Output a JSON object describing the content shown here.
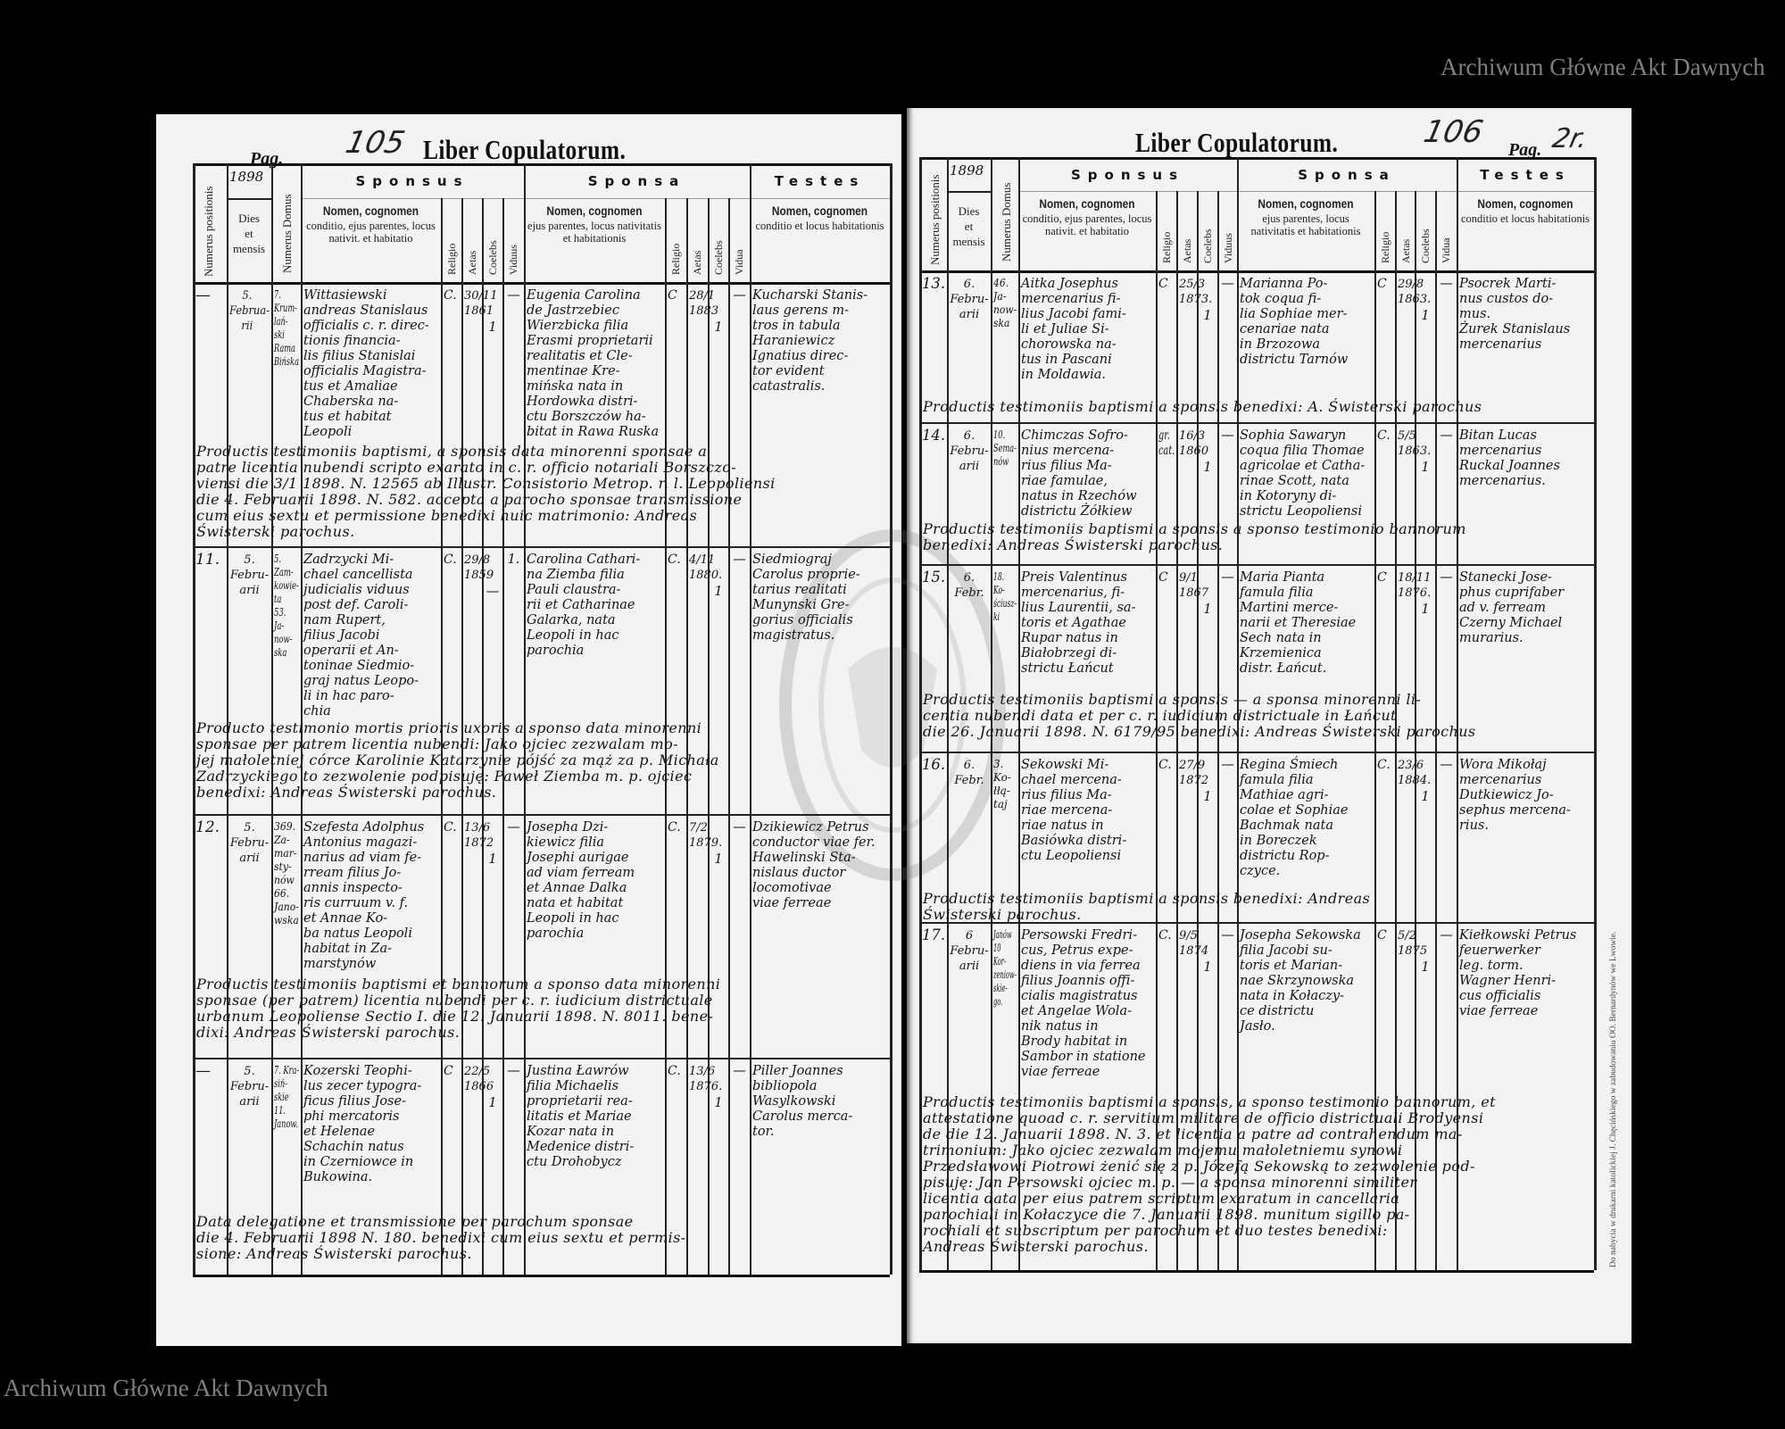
{
  "header": {
    "title": "Liber Copulatorum.",
    "pag_label": "Pag.",
    "year": "1898",
    "col_numerus_positionis": "Numerus positionis",
    "col_dies": "Dies\net\nmensis",
    "col_numerus_domus": "Numerus Domus",
    "sponsus_group": "Sponsus",
    "sponsa_group": "Sponsa",
    "testes_group": "Testes",
    "nomen": "Nomen, cognomen",
    "sponsus_desc": "conditio, ejus parentes, locus nativit. et habitatio",
    "sponsa_desc": "ejus parentes, locus nativitatis et habitationis",
    "testes_desc": "conditio et locus habitationis",
    "religio": "Religio",
    "aetas": "Aetas",
    "coelebs": "Coelebs",
    "viduus": "Viduus",
    "vidua": "Vidua"
  },
  "watermark": "Archiwum Główne Akt Dawnych",
  "imprint": "Do nabycia w drukarni katolickiej J. Chęcińskiego w zabudowaniu OO. Bernardynów we Lwowie.",
  "pages": [
    {
      "folio": "105",
      "pag": "",
      "entries": [
        {
          "num": "—",
          "date": "5.\nFebrua-\nrii",
          "domus": "7.\nKrum-\nlań-\nski\nRama\nBińska",
          "sponsus": "Wittasiewski\nandreas Stanislaus\nofficialis c. r. direc-\ntionis financia-\nlis filius Stanislai\nofficialis Magistra-\ntus et Amaliae\nChaberska na-\ntus et habitat\nLeopoli",
          "sponsus_religio": "C.",
          "sponsus_aetas": "30/11\n1861",
          "sponsus_coelebs": "1",
          "sponsus_viduus": "—",
          "sponsa": "Eugenia Carolina\nde Jastrzebiec\nWierzbicka filia\nErasmi proprietarii\nrealitatis et Cle-\nmentinae Kre-\nmińska nata in\nHordowka distri-\nctu Borszczów ha-\nbitat in Rawa Ruska",
          "sponsa_religio": "C",
          "sponsa_aetas": "28/1\n1883",
          "sponsa_coelebs": "1",
          "sponsa_vidua": "—",
          "testes": "Kucharski Stanis-\nlaus gerens m-\ntros in tabula\nHaraniewicz\nIgnatius direc-\ntor evident\ncatastralis.",
          "note": "Productis testimoniis baptismi, a sponsis data minorenni sponsae a\npatre licentia nubendi scripto exarato in c. r. officio notariali Borszczo-\nviensi die 3/1 1898. N. 12565 ab Illustr. Consistorio Metrop. r. l. Leopoliensi\ndie 4. Februarii 1898. N. 582. accepta a parocho sponsae transmissione\ncum eius sextu et permissione benedixi huic matrimonio: Andreas\nŚwisterski parochus."
        },
        {
          "num": "11.",
          "date": "5.\nFebru-\narii",
          "domus": "5.\nZam-\nkowie-\nta\n53.\nJa-\nnow-\nska",
          "sponsus": "Zadrzycki Mi-\nchael cancellista\njudicialis viduus\npost def. Caroli-\nnam Rupert,\nfilius Jacobi\noperarii et An-\ntoninae Siedmio-\ngraj natus Leopo-\nli in hac paro-\nchia",
          "sponsus_religio": "C.",
          "sponsus_aetas": "29/8\n1859",
          "sponsus_coelebs": "—",
          "sponsus_viduus": "1.",
          "sponsa": "Carolina Cathari-\nna Ziemba filia\nPauli claustra-\nrii et Catharinae\nGalarka, nata\nLeopoli in hac\nparochia",
          "sponsa_religio": "C.",
          "sponsa_aetas": "4/11\n1880.",
          "sponsa_coelebs": "1",
          "sponsa_vidua": "—",
          "testes": "Siedmiograj\nCarolus proprie-\ntarius realitati\nMunynski Gre-\ngorius officialis\nmagistratus.",
          "note": "Producto testimonio mortis prioris uxoris a sponso data minorenni\nsponsae per patrem licentia nubendi: Jako ojciec zezwalam mo-\njej małoletniej córce Karolinie Katarzynie pójść za mąż za p. Michała\nZadrzyckiego to zezwolenie podpisuję: Paweł Ziemba m. p. ojciec\nbenedixi: Andreas Świsterski parochus."
        },
        {
          "num": "12.",
          "date": "5.\nFebru-\narii",
          "domus": "369.\nZa-\nmar-\nsty-\nnów\n66.\nJano-\nwska",
          "sponsus": "Szefesta Adolphus\nAntonius magazi-\nnarius ad viam fe-\nrream filius Jo-\nannis inspecto-\nris curruum v. f.\net Annae Ko-\nba natus Leopoli\nhabitat in Za-\nmarstynów",
          "sponsus_religio": "C.",
          "sponsus_aetas": "13/6\n1872",
          "sponsus_coelebs": "1",
          "sponsus_viduus": "—",
          "sponsa": "Josepha Dzi-\nkiewicz filia\nJosephi aurigae\nad viam ferream\net Annae Dalka\nnata et habitat\nLeopoli in hac\nparochia",
          "sponsa_religio": "C.",
          "sponsa_aetas": "7/2\n1879.",
          "sponsa_coelebs": "1",
          "sponsa_vidua": "—",
          "testes": "Dzikiewicz Petrus\nconductor viae fer.\nHawelinski Sta-\nnislaus ductor\nlocomotivae\nviae ferreae",
          "note": "Productis testimoniis baptismi et bannorum a sponso data minorenni\nsponsae (per patrem) licentia nubendi per c. r. iudicium districtuale\nurbanum Leopoliense Sectio I. die 12. Januarii 1898. N. 8011. bene-\ndixi: Andreas Świsterski parochus."
        },
        {
          "num": "—",
          "date": "5.\nFebru-\narii",
          "domus": "7. Kra-\nsiń-\nskie\n11.\nJanow.",
          "sponsus": "Kozerski Teophi-\nlus zecer typogra-\nficus filius Jose-\nphi mercatoris\net Helenae\nSchachin natus\nin Czerniowce in\nBukowina.",
          "sponsus_religio": "C",
          "sponsus_aetas": "22/5\n1866",
          "sponsus_coelebs": "1",
          "sponsus_viduus": "—",
          "sponsa": "Justina Ławrów\nfilia Michaelis\nproprietarii rea-\nlitatis et Mariae\nKozar nata in\nMedenice distri-\nctu Drohobycz",
          "sponsa_religio": "C.",
          "sponsa_aetas": "13/6\n1876.",
          "sponsa_coelebs": "1",
          "sponsa_vidua": "—",
          "testes": "Piller Joannes\nbibliopola\nWasylkowski\nCarolus merca-\ntor.",
          "note": "Data delegatione et transmissione per parochum sponsae\ndie 4. Februarii 1898 N. 180. benedixi cum eius sextu et permis-\nsione: Andreas Świsterski parochus."
        }
      ]
    },
    {
      "folio": "106",
      "pag": "2r.",
      "entries": [
        {
          "num": "13.",
          "date": "6.\nFebru-\narii",
          "domus": "46.\nJa-\nnow-\nska",
          "sponsus": "Aitka Josephus\nmercenarius fi-\nlius Jacobi fami-\nli et Juliae Si-\nchorowska na-\ntus in Pascani\nin Moldawia.",
          "sponsus_religio": "C",
          "sponsus_aetas": "25/3\n1873.",
          "sponsus_coelebs": "1",
          "sponsus_viduus": "—",
          "sponsa": "Marianna Po-\ntok coqua fi-\nlia Sophiae mer-\ncenariae nata\nin Brzozowa\ndistrictu Tarnów",
          "sponsa_religio": "C",
          "sponsa_aetas": "29/8\n1863.",
          "sponsa_coelebs": "1",
          "sponsa_vidua": "—",
          "testes": "Psocrek Marti-\nnus custos do-\nmus.\nŻurek Stanislaus\nmercenarius",
          "note": "Productis testimoniis baptismi a sponsis benedixi: A. Świsterski parochus"
        },
        {
          "num": "14.",
          "date": "6.\nFebru-\narii",
          "domus": "10.\nSema-\nnów",
          "sponsus": "Chimczas Sofro-\nnius mercena-\nrius filius Ma-\nriae famulae,\nnatus in Rzechów\ndistrictu Żółkiew",
          "sponsus_religio": "gr.\ncat.",
          "sponsus_aetas": "16/3\n1860",
          "sponsus_coelebs": "1",
          "sponsus_viduus": "—",
          "sponsa": "Sophia Sawaryn\ncoqua filia Thomae\nagricolae et Catha-\nrinae Scott, nata\nin Kotoryny di-\nstrictu Leopoliensi",
          "sponsa_religio": "C.",
          "sponsa_aetas": "5/5\n1863.",
          "sponsa_coelebs": "1",
          "sponsa_vidua": "—",
          "testes": "Bitan Lucas\nmercenarius\nRuckal Joannes\nmercenarius.",
          "note": "Productis testimoniis baptismi a sponsis a sponso testimonio bannorum\nbenedixi: Andreas Świsterski parochus."
        },
        {
          "num": "15.",
          "date": "6.\nFebr.",
          "domus": "18.\nKo-\nściusz-\nki",
          "sponsus": "Preis Valentinus\nmercenarius, fi-\nlius Laurentii, sa-\ntoris et Agathae\nRupar natus in\nBiałobrzegi di-\nstrictu Łańcut",
          "sponsus_religio": "C",
          "sponsus_aetas": "9/1\n1867",
          "sponsus_coelebs": "1",
          "sponsus_viduus": "—",
          "sponsa": "Maria Pianta\nfamula filia\nMartini merce-\nnarii et Theresiae\nSech nata in\nKrzemienica\ndistr. Łańcut.",
          "sponsa_religio": "C",
          "sponsa_aetas": "18/11\n1876.",
          "sponsa_coelebs": "1",
          "sponsa_vidua": "—",
          "testes": "Stanecki Jose-\nphus cuprifaber\nad v. ferream\nCzerny Michael\nmurarius.",
          "note": "Productis testimoniis baptismi a sponsis — a sponsa minorenni li-\ncentia nubendi data et per c. r. iudicium districtuale in Łańcut\ndie 26. Januarii 1898. N. 6179/95 benedixi: Andreas Świsterski parochus"
        },
        {
          "num": "16.",
          "date": "6.\nFebr.",
          "domus": "3.\nKo-\nłłą-\ntaj",
          "sponsus": "Sekowski Mi-\nchael mercena-\nrius filius Ma-\nriae mercena-\nriae natus in\nBasiówka distri-\nctu Leopoliensi",
          "sponsus_religio": "C.",
          "sponsus_aetas": "27/9\n1872",
          "sponsus_coelebs": "1",
          "sponsus_viduus": "—",
          "sponsa": "Regina Śmiech\nfamula filia\nMathiae agri-\ncolae et Sophiae\nBachmak nata\nin Boreczek\ndistrictu Rop-\nczyce.",
          "sponsa_religio": "C.",
          "sponsa_aetas": "23/6\n1884.",
          "sponsa_coelebs": "1",
          "sponsa_vidua": "—",
          "testes": "Wora Mikołaj\nmercenarius\nDutkiewicz Jo-\nsephus mercena-\nrius.",
          "note": "Productis testimoniis baptismi a sponsis benedixi: Andreas\nŚwisterski parochus."
        },
        {
          "num": "17.",
          "date": "6\nFebru-\narii",
          "domus": "Janów\n10\nKor-\nzeniow-\nskie-\ngo.",
          "sponsus": "Persowski Fredri-\ncus, Petrus expe-\ndiens in via ferrea\nfilius Joannis offi-\ncialis magistratus\net Angelae Wola-\nnik natus in\nBrody habitat in\nSambor in statione\nviae ferreae",
          "sponsus_religio": "C.",
          "sponsus_aetas": "9/5\n1874",
          "sponsus_coelebs": "1",
          "sponsus_viduus": "—",
          "sponsa": "Josepha Sekowska\nfilia Jacobi su-\ntoris et Marian-\nnae Skrzynowska\nnata in Kołaczy-\nce districtu\nJasło.",
          "sponsa_religio": "C",
          "sponsa_aetas": "5/2\n1875",
          "sponsa_coelebs": "1",
          "sponsa_vidua": "—",
          "testes": "Kiełkowski Petrus\nfeuerwerker\nleg. torm.\nWagner Henri-\ncus officialis\nviae ferreae",
          "note": "Productis testimoniis baptismi a sponsis, a sponso testimonio bannorum, et\nattestatione quoad c. r. servitium militare de officio districtuali Brodyensi\nde die 12. Januarii 1898. N. 3. et licentia a patre ad contrahendum ma-\ntrimonium: Jako ojciec zezwalam mojemu małoletniemu synowi\nPrzedsławowi Piotrowi żenić się z p. Józefą Sekowską to zezwolenie pod-\npisuję: Jan Persowski ojciec m. p. — a sponsa minorenni similiter\nlicentia data per eius patrem scriptum exaratum in cancellaria\nparochiali in Kołaczyce die 7. Januarii 1898. munitum sigillo pa-\nrochiali et subscriptum per parochum et duo testes benedixi:\nAndreas Świsterski parochus."
        }
      ]
    }
  ]
}
